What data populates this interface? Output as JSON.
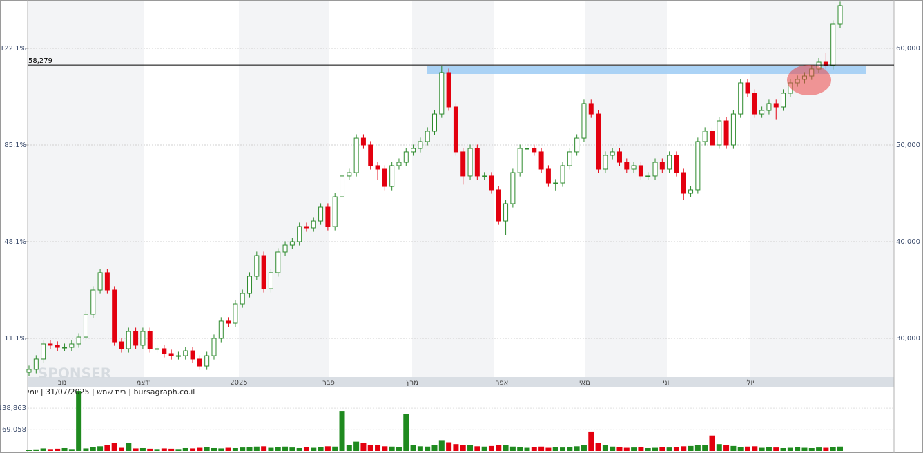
{
  "chart_data": {
    "type": "candlestick",
    "x_tick_labels": [
      "נוב",
      "דצמ'",
      "2025",
      "פבר",
      "מרץ",
      "אפר",
      "מאי",
      "יוני",
      "יולי"
    ],
    "open": [
      26500,
      26790,
      27860,
      29430,
      29290,
      29070,
      29070,
      29430,
      30140,
      32500,
      35000,
      36790,
      35000,
      29640,
      28930,
      30710,
      29290,
      30710,
      28930,
      28930,
      28430,
      28210,
      28210,
      28710,
      27860,
      27140,
      28210,
      30000,
      31790,
      31570,
      33570,
      34640,
      36430,
      38570,
      35140,
      36790,
      38930,
      39640,
      40000,
      41570,
      41430,
      42140,
      43570,
      41570,
      44640,
      46790,
      47140,
      50710,
      50000,
      47860,
      47500,
      45710,
      47860,
      48210,
      49290,
      49640,
      50360,
      51430,
      53210,
      57500,
      53930,
      49290,
      46790,
      49640,
      46790,
      46790,
      45360,
      42140,
      43930,
      47140,
      49640,
      49640,
      49290,
      47500,
      46070,
      46070,
      47860,
      49290,
      50710,
      54290,
      53210,
      47500,
      48930,
      49290,
      48210,
      47500,
      47860,
      46790,
      46790,
      48210,
      47500,
      48930,
      47140,
      45000,
      45360,
      50360,
      51430,
      50000,
      52500,
      50000,
      53210,
      56430,
      55360,
      53210,
      53570,
      54290,
      53930,
      55360,
      56430,
      56790,
      57140,
      57860,
      58570,
      58210,
      62500
    ],
    "high": [
      27190,
      28260,
      29830,
      29830,
      29690,
      29470,
      29830,
      30540,
      32900,
      35400,
      37190,
      37190,
      35400,
      30040,
      31110,
      31110,
      31110,
      31110,
      29330,
      29330,
      28830,
      28610,
      29110,
      29110,
      28260,
      28610,
      30400,
      32190,
      32190,
      33970,
      35040,
      36830,
      38970,
      38970,
      37190,
      39330,
      40040,
      40400,
      41970,
      41970,
      42540,
      43970,
      43970,
      45040,
      47190,
      47540,
      51110,
      51110,
      50400,
      48260,
      47900,
      48260,
      48610,
      49690,
      50040,
      50760,
      51830,
      53610,
      58210,
      57900,
      54330,
      49690,
      50040,
      50040,
      47190,
      47190,
      45760,
      44330,
      47540,
      50040,
      50040,
      50040,
      49690,
      47900,
      46470,
      48260,
      49690,
      51110,
      54690,
      54690,
      53610,
      49330,
      49690,
      49690,
      48610,
      48260,
      48260,
      47190,
      48610,
      48610,
      49330,
      49330,
      47540,
      45760,
      50760,
      51830,
      51830,
      52900,
      52900,
      53610,
      56830,
      56830,
      55760,
      53970,
      54690,
      54690,
      55760,
      56830,
      57190,
      57540,
      58260,
      59000,
      59500,
      62900,
      64830
    ],
    "low": [
      26100,
      26390,
      27460,
      28890,
      28670,
      28670,
      28670,
      29030,
      29740,
      32100,
      34600,
      34600,
      29240,
      28530,
      28530,
      28890,
      28890,
      28530,
      28530,
      28030,
      27810,
      27810,
      27810,
      27460,
      26740,
      26740,
      27810,
      29600,
      31170,
      31170,
      33170,
      34240,
      36030,
      34740,
      34740,
      36390,
      38530,
      39240,
      39600,
      41030,
      41030,
      41740,
      41170,
      41170,
      44240,
      46390,
      46740,
      49600,
      47460,
      46400,
      45310,
      45310,
      47460,
      47810,
      48890,
      49240,
      49960,
      51030,
      52810,
      53530,
      48890,
      45900,
      46390,
      46390,
      46390,
      44960,
      41740,
      40700,
      43530,
      46740,
      49240,
      48890,
      47100,
      45670,
      45300,
      45670,
      47460,
      48890,
      50310,
      52810,
      47100,
      47100,
      48530,
      47810,
      47100,
      47100,
      46390,
      46390,
      46390,
      47100,
      47100,
      46740,
      44300,
      44600,
      44960,
      49960,
      49600,
      49600,
      49600,
      49600,
      52810,
      54960,
      52810,
      52810,
      53170,
      52600,
      53530,
      54960,
      56030,
      56390,
      56740,
      57460,
      57810,
      57810,
      62100
    ],
    "close": [
      26790,
      27860,
      29430,
      29290,
      29070,
      29070,
      29430,
      30140,
      32500,
      35000,
      36790,
      35000,
      29640,
      28930,
      30710,
      29290,
      30710,
      28930,
      28930,
      28430,
      28210,
      28210,
      28710,
      27860,
      27140,
      28210,
      30000,
      31790,
      31570,
      33570,
      34640,
      36430,
      38570,
      35140,
      36790,
      38930,
      39640,
      40000,
      41570,
      41430,
      42140,
      43570,
      41570,
      44640,
      46790,
      47140,
      50710,
      50000,
      47860,
      47500,
      45710,
      47860,
      48210,
      49290,
      49640,
      50360,
      51430,
      53210,
      57500,
      53930,
      49290,
      46790,
      49640,
      46790,
      46790,
      45360,
      42140,
      43930,
      47140,
      49640,
      49640,
      49290,
      47500,
      46070,
      46070,
      47860,
      49290,
      50710,
      54290,
      53210,
      47500,
      48930,
      49290,
      48210,
      47500,
      47860,
      46790,
      46790,
      48210,
      47500,
      48930,
      47140,
      45000,
      45360,
      50360,
      51430,
      50000,
      52500,
      50000,
      53210,
      56430,
      55360,
      53210,
      53570,
      54290,
      53930,
      55360,
      56430,
      56790,
      57140,
      57860,
      58570,
      58210,
      62500,
      64430
    ],
    "volume": [
      3000,
      5000,
      8000,
      6000,
      7000,
      9000,
      6000,
      195000,
      8000,
      12000,
      15000,
      18000,
      25000,
      10000,
      25000,
      8000,
      9000,
      7000,
      6000,
      8000,
      7000,
      6000,
      9000,
      8000,
      10000,
      12000,
      9000,
      8000,
      10000,
      9000,
      11000,
      12000,
      14000,
      15000,
      10000,
      12000,
      14000,
      11000,
      9000,
      12000,
      10000,
      13000,
      15000,
      14000,
      130000,
      20000,
      30000,
      25000,
      20000,
      18000,
      15000,
      14000,
      12000,
      120000,
      18000,
      15000,
      14000,
      20000,
      35000,
      28000,
      22000,
      20000,
      18000,
      15000,
      14000,
      16000,
      20000,
      18000,
      14000,
      12000,
      10000,
      12000,
      14000,
      10000,
      12000,
      11000,
      13000,
      15000,
      20000,
      63000,
      25000,
      18000,
      14000,
      12000,
      10000,
      11000,
      12000,
      9000,
      10000,
      12000,
      11000,
      13000,
      15000,
      16000,
      20000,
      18000,
      50000,
      22000,
      18000,
      16000,
      12000,
      14000,
      15000,
      10000,
      12000,
      11000,
      9000,
      10000,
      12000,
      10000,
      9000,
      11000,
      10000,
      12000,
      14000
    ],
    "up_color": "#2e8b2e",
    "down_color": "#e3000f",
    "ylim": [
      26000,
      65000
    ],
    "yticks": [
      {
        "value": 30000,
        "label": "30,000"
      },
      {
        "value": 40000,
        "label": "40,000"
      },
      {
        "value": 50000,
        "label": "50,000"
      },
      {
        "value": 60000,
        "label": "60,000"
      }
    ],
    "y2lim": [
      -3.7,
      140.6
    ],
    "y2ticks": [
      {
        "value": 11.1,
        "label": "11.1%"
      },
      {
        "value": 48.1,
        "label": "48.1%"
      },
      {
        "value": 85.1,
        "label": "85.1%"
      },
      {
        "value": 122.1,
        "label": "122.1%"
      }
    ],
    "volume_ylim": [
      0,
      197500
    ],
    "volume_ticks": [
      {
        "value": 69058,
        "label": "69,058"
      },
      {
        "value": 138863,
        "label": "138,863"
      }
    ],
    "reference_line": {
      "value": 58279,
      "label": "58,279"
    },
    "caption": "bursagraph.co.il | בית שמש | 31/07/2025 | יומי",
    "watermark": "SPONSER",
    "grid": true
  }
}
